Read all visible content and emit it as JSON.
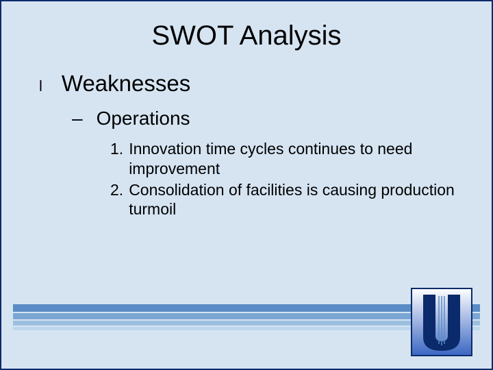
{
  "slide": {
    "background_color": "#d6e4f2",
    "border_color": "#0b2a6b",
    "title": "SWOT Analysis",
    "title_fontsize": 40,
    "title_color": "#000000",
    "level1": {
      "bullet_char": "l",
      "bullet_fontsize": 22,
      "text": "Weaknesses",
      "fontsize": 33,
      "color": "#000000"
    },
    "level2": {
      "dash": "–",
      "text": "Operations",
      "fontsize": 28,
      "color": "#000000"
    },
    "level3": {
      "fontsize": 23,
      "color": "#000000",
      "items": [
        {
          "num": "1.",
          "text": "Innovation time cycles continues to need improvement"
        },
        {
          "num": "2.",
          "text": "Consolidation of facilities is causing production turmoil"
        }
      ]
    },
    "stripes": {
      "colors": [
        "#5a8bc4",
        "#7ba6d4",
        "#9cbfe0",
        "#bdd7ec"
      ],
      "heights": [
        11,
        9,
        7,
        5
      ]
    },
    "logo": {
      "border_color": "#0b2a6b",
      "bg_gradient_top": "#ffffff",
      "bg_gradient_bottom": "#3a66c2",
      "u_color": "#0b2a6b"
    }
  }
}
